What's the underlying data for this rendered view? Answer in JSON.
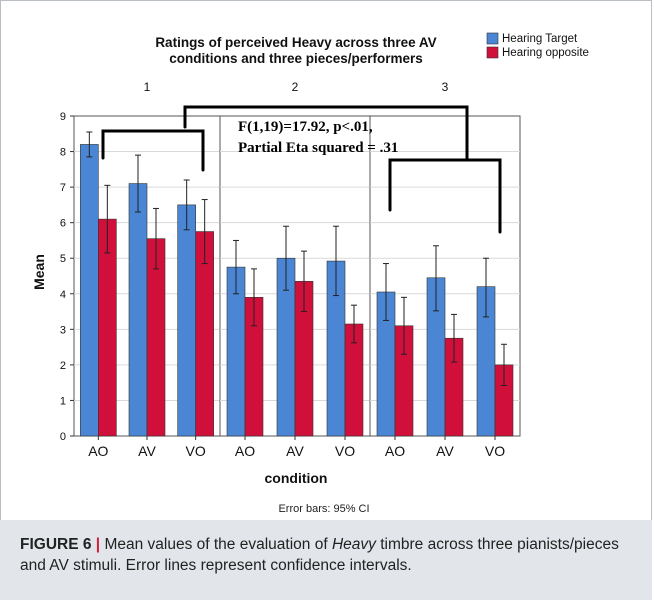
{
  "chart_data": {
    "type": "bar",
    "title_line1": "Ratings of perceived Heavy across three AV",
    "title_line2": "conditions and three pieces/performers",
    "xlabel": "condition",
    "ylabel": "Mean",
    "ylim": [
      0,
      9
    ],
    "yticks": [
      "0",
      "1",
      "2",
      "3",
      "4",
      "5",
      "6",
      "7",
      "8",
      "9"
    ],
    "grid": true,
    "legend_position": "top-right",
    "panels": [
      {
        "label": "1",
        "categories": [
          "AO",
          "AV",
          "VO"
        ],
        "series": [
          {
            "name": "Hearing Target",
            "color": "#4a86d4",
            "values": [
              8.2,
              7.1,
              6.5
            ],
            "ci_low": [
              7.85,
              6.3,
              5.8
            ],
            "ci_high": [
              8.55,
              7.9,
              7.2
            ]
          },
          {
            "name": "Hearing opposite",
            "color": "#d0103a",
            "values": [
              6.1,
              5.55,
              5.75
            ],
            "ci_low": [
              5.15,
              4.7,
              4.85
            ],
            "ci_high": [
              7.05,
              6.4,
              6.65
            ]
          }
        ]
      },
      {
        "label": "2",
        "categories": [
          "AO",
          "AV",
          "VO"
        ],
        "series": [
          {
            "name": "Hearing Target",
            "color": "#4a86d4",
            "values": [
              4.75,
              5.0,
              4.92
            ],
            "ci_low": [
              4.0,
              4.1,
              3.95
            ],
            "ci_high": [
              5.5,
              5.9,
              5.9
            ]
          },
          {
            "name": "Hearing opposite",
            "color": "#d0103a",
            "values": [
              3.9,
              4.35,
              3.15
            ],
            "ci_low": [
              3.1,
              3.5,
              2.62
            ],
            "ci_high": [
              4.7,
              5.2,
              3.68
            ]
          }
        ]
      },
      {
        "label": "3",
        "categories": [
          "AO",
          "AV",
          "VO"
        ],
        "series": [
          {
            "name": "Hearing Target",
            "color": "#4a86d4",
            "values": [
              4.05,
              4.45,
              4.2
            ],
            "ci_low": [
              3.25,
              3.52,
              3.35
            ],
            "ci_high": [
              4.85,
              5.35,
              5.0
            ]
          },
          {
            "name": "Hearing opposite",
            "color": "#d0103a",
            "values": [
              3.1,
              2.75,
              2.0
            ],
            "ci_low": [
              2.3,
              2.08,
              1.42
            ],
            "ci_high": [
              3.9,
              3.42,
              2.58
            ]
          }
        ]
      }
    ],
    "legend": [
      {
        "label": "Hearing Target",
        "color": "#4a86d4"
      },
      {
        "label": "Hearing opposite",
        "color": "#d0103a"
      }
    ],
    "annotation_line1": "F(1,19)=17.92, p<.01,",
    "annotation_line2": "Partial Eta squared = .31",
    "footnote": "Error bars: 95% CI"
  },
  "caption": {
    "label": "FIGURE 6",
    "separator": "|",
    "text_before": "Mean values of the evaluation of",
    "text_italic": "Heavy",
    "text_after": "timbre across three pianists/pieces and AV stimuli. Error lines represent confidence intervals."
  }
}
